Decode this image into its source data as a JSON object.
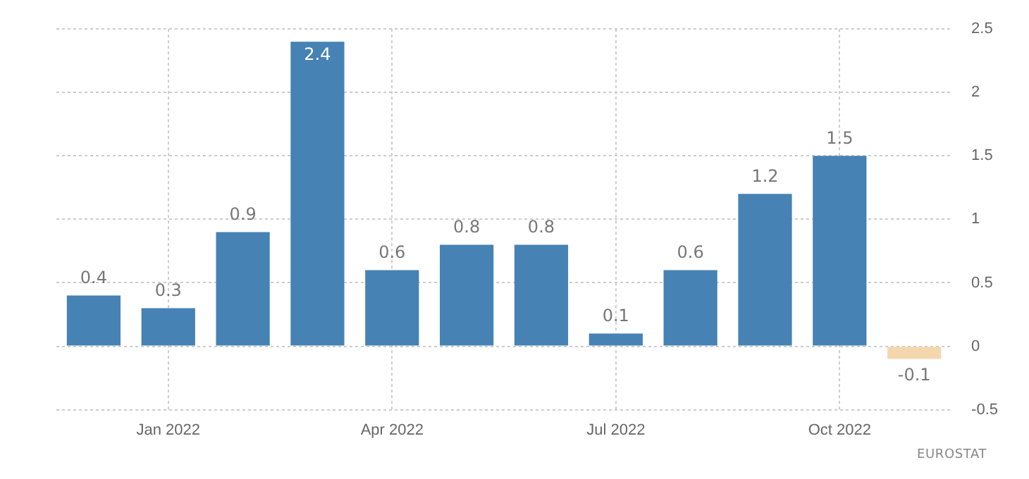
{
  "chart_data": {
    "type": "bar",
    "categories": [
      null,
      "Jan 2022",
      null,
      null,
      "Apr 2022",
      null,
      null,
      "Jul 2022",
      null,
      null,
      "Oct 2022",
      null
    ],
    "values": [
      0.4,
      0.3,
      0.9,
      2.4,
      0.6,
      0.8,
      0.8,
      0.1,
      0.6,
      1.2,
      1.5,
      -0.1
    ],
    "colors": [
      "#4682b4",
      "#4682b4",
      "#4682b4",
      "#4682b4",
      "#4682b4",
      "#4682b4",
      "#4682b4",
      "#4682b4",
      "#4682b4",
      "#4682b4",
      "#4682b4",
      "#f5d7ae"
    ],
    "ylim": [
      -0.5,
      2.5
    ],
    "yticks": [
      -0.5,
      0,
      0.5,
      1,
      1.5,
      2,
      2.5
    ],
    "grid": true,
    "data_labels": true,
    "annotations": [
      "EUROSTAT"
    ]
  }
}
